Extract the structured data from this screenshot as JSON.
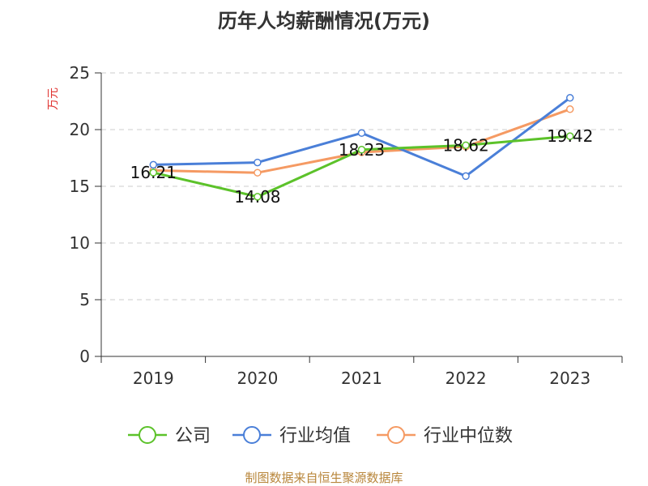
{
  "source_text": "制图数据来自恒生聚源数据库",
  "chart_data": {
    "type": "line",
    "title": "历年人均薪酬情况(万元)",
    "ylabel": "万元",
    "xlabel": "",
    "ylim": [
      0,
      25
    ],
    "yticks": [
      0,
      5,
      10,
      15,
      20,
      25
    ],
    "grid": true,
    "legend_position": "bottom",
    "categories": [
      "2019",
      "2020",
      "2021",
      "2022",
      "2023"
    ],
    "series": [
      {
        "name": "公司",
        "color": "#5cc22a",
        "values": [
          16.21,
          14.08,
          18.23,
          18.62,
          19.42
        ],
        "labels": [
          "16.21",
          "14.08",
          "18.23",
          "18.62",
          "19.42"
        ]
      },
      {
        "name": "行业均值",
        "color": "#4a7fd8",
        "values": [
          16.9,
          17.1,
          19.7,
          15.9,
          22.8
        ]
      },
      {
        "name": "行业中位数",
        "color": "#f59a63",
        "values": [
          16.4,
          16.2,
          18.0,
          18.5,
          21.8
        ]
      }
    ]
  }
}
